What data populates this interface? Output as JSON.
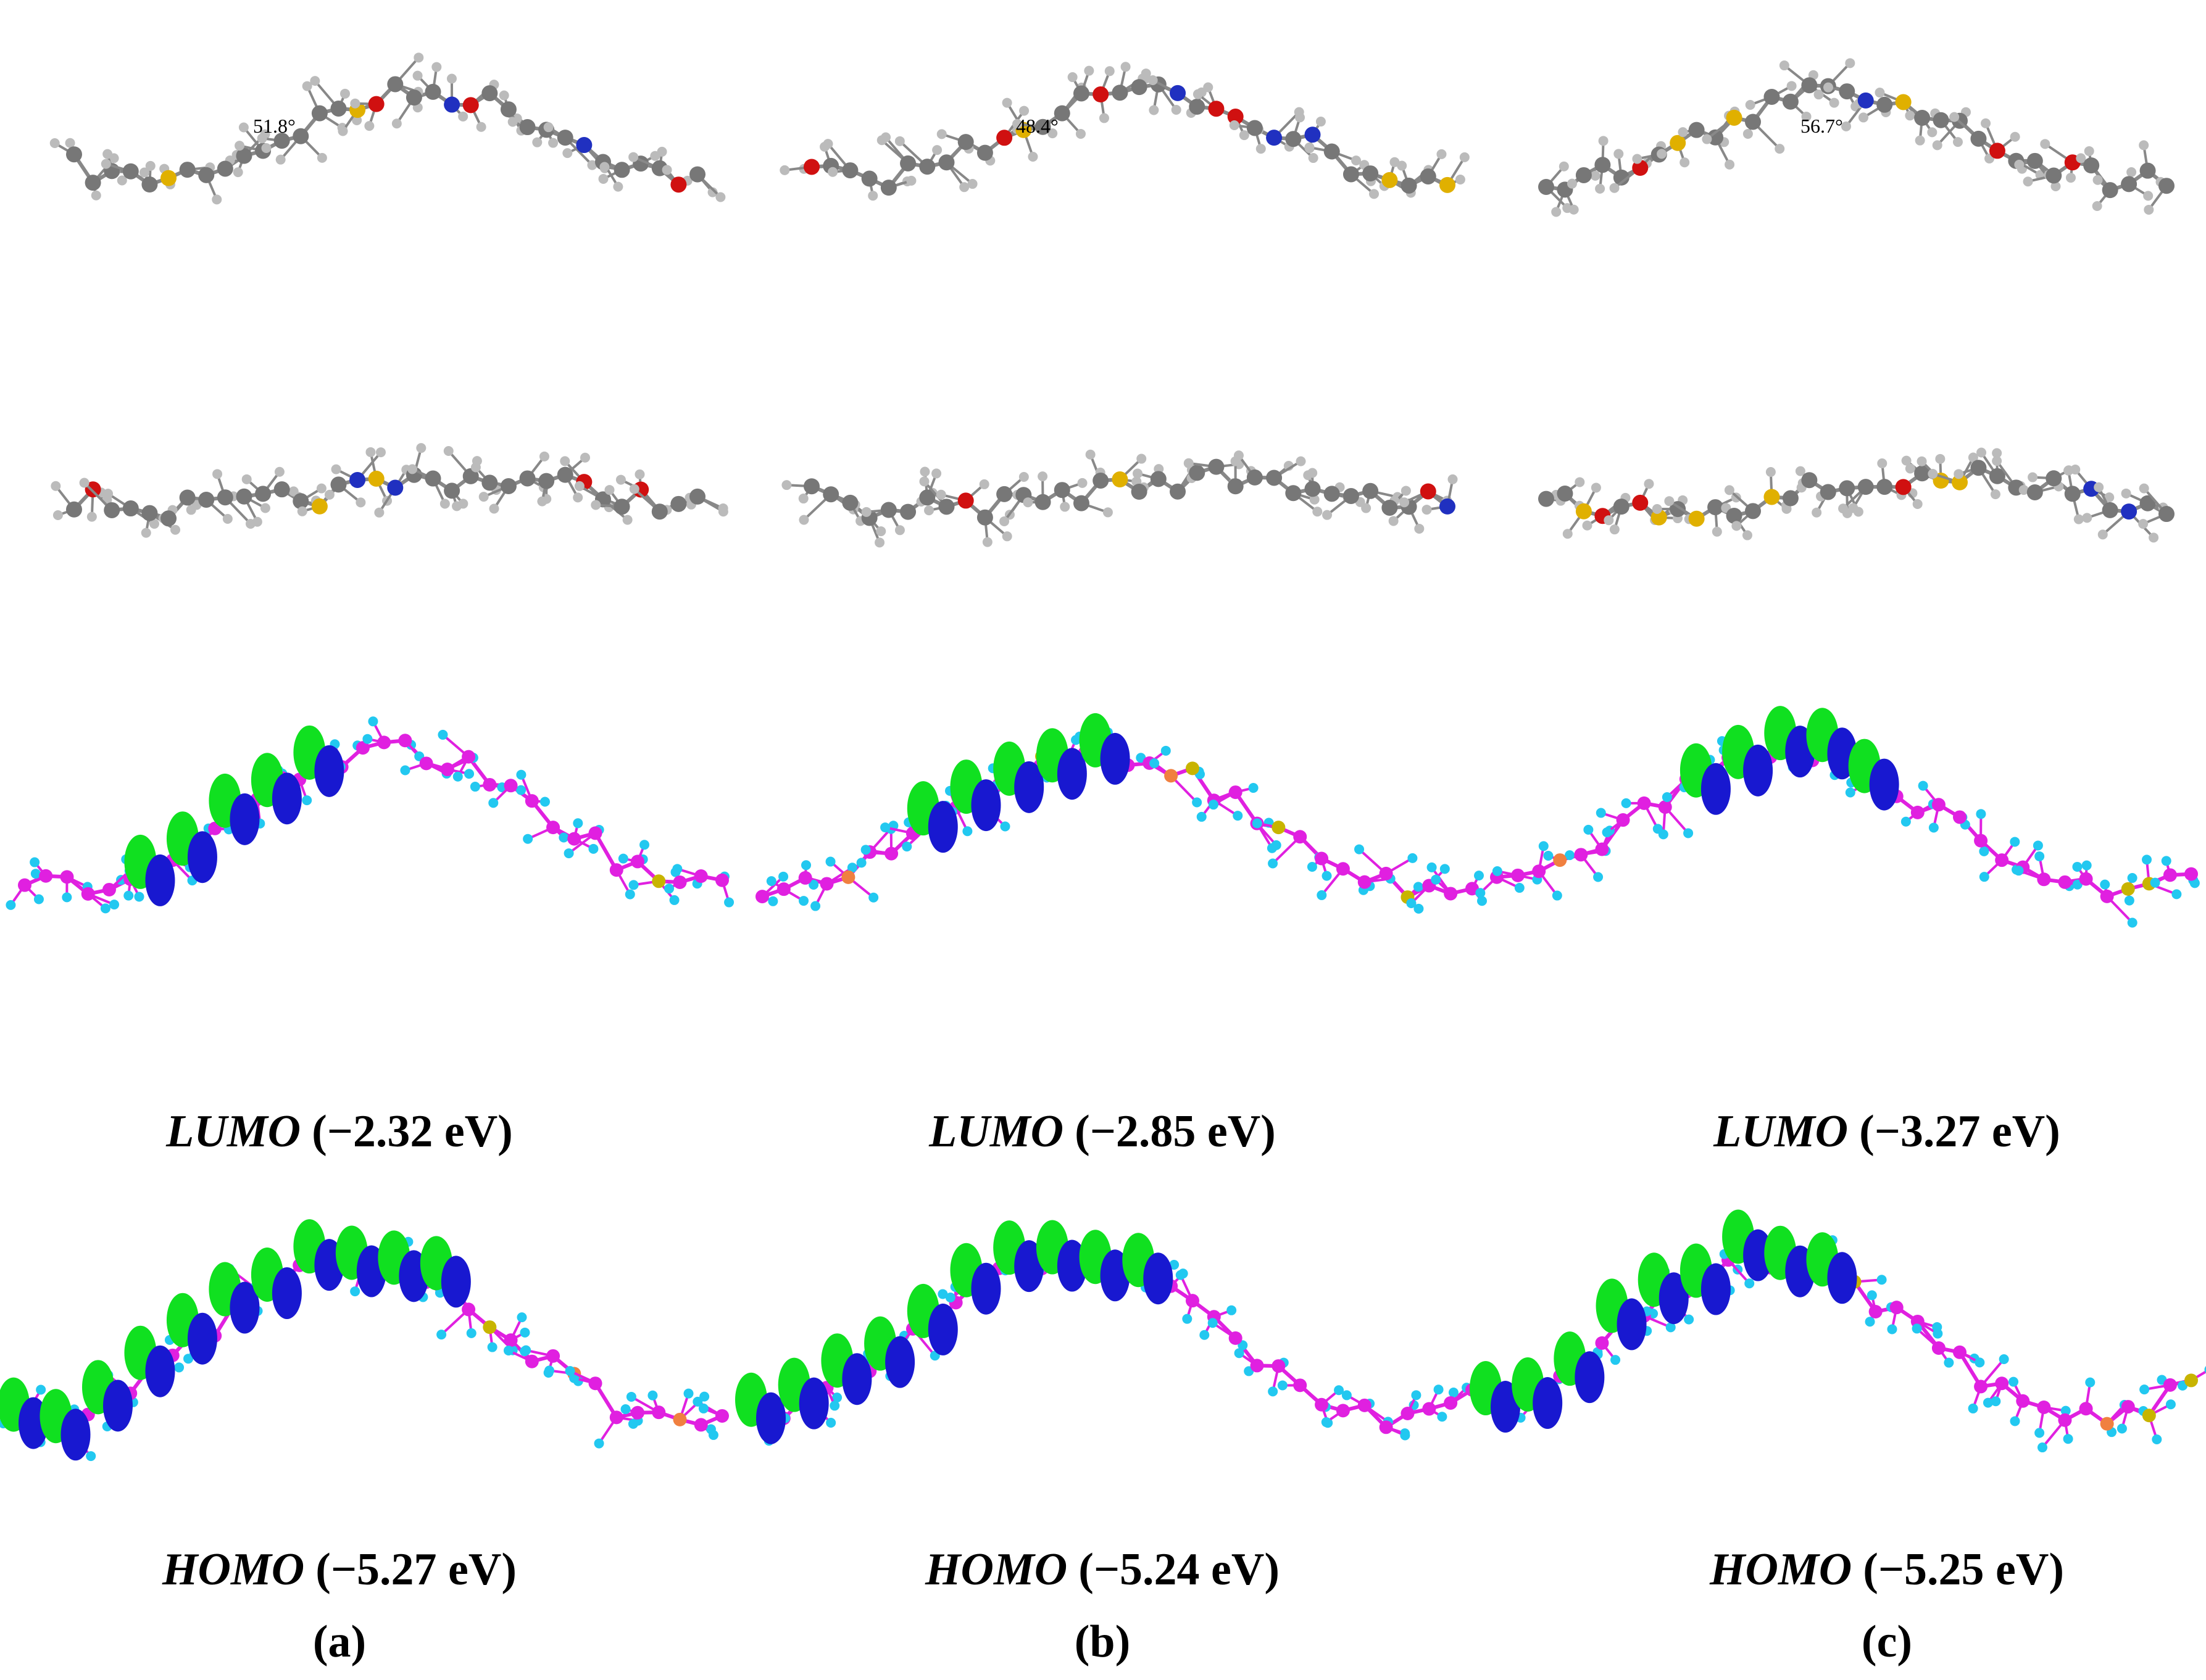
{
  "panels": [
    {
      "label": "(a)",
      "dihedral": "51.8°",
      "lumo": {
        "orbital": "LUMO",
        "energy": "(−2.32 eV)"
      },
      "homo": {
        "orbital": "HOMO",
        "energy": "(−5.27 eV)"
      }
    },
    {
      "label": "(b)",
      "dihedral": "48.4°",
      "lumo": {
        "orbital": "LUMO",
        "energy": "(−2.85 eV)"
      },
      "homo": {
        "orbital": "HOMO",
        "energy": "(−5.24 eV)"
      }
    },
    {
      "label": "(c)",
      "dihedral": "56.7°",
      "lumo": {
        "orbital": "LUMO",
        "energy": "(−3.27 eV)"
      },
      "homo": {
        "orbital": "HOMO",
        "energy": "(−5.25 eV)"
      }
    }
  ]
}
